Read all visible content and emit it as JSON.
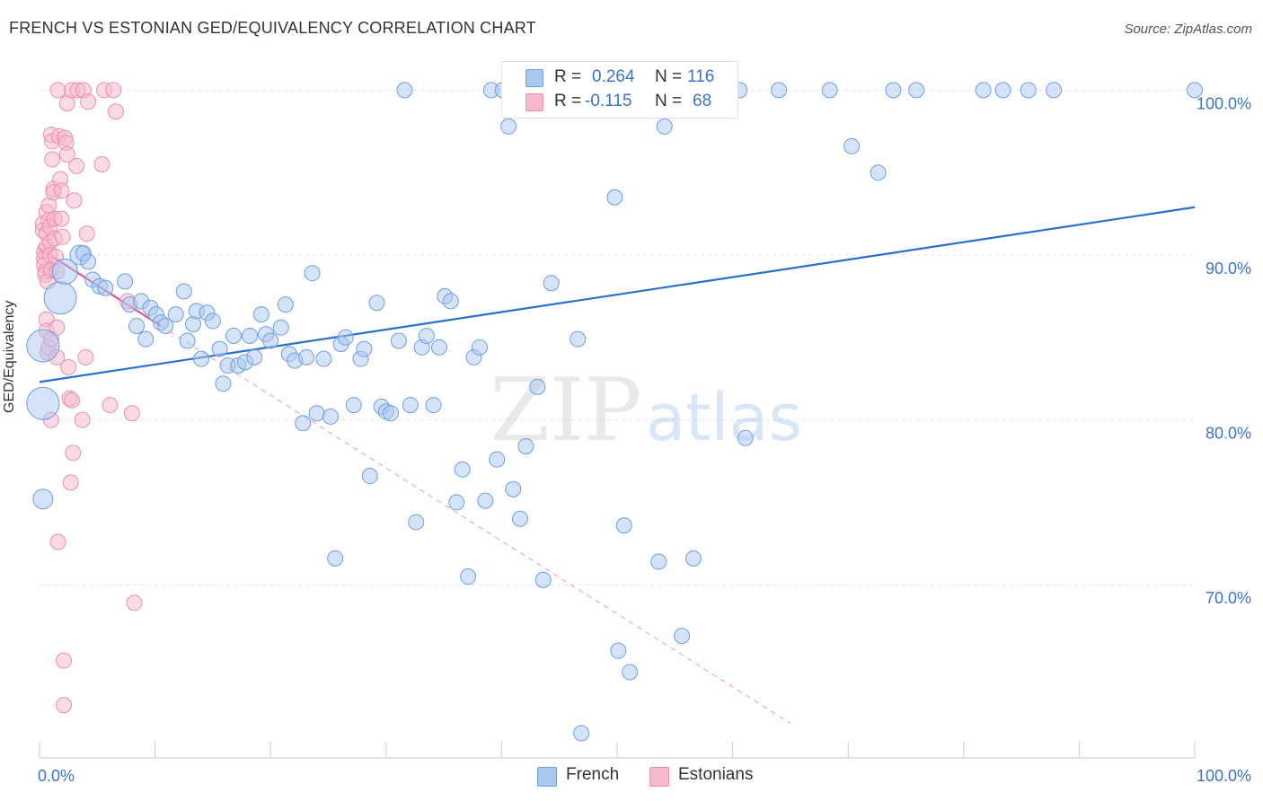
{
  "title": "FRENCH VS ESTONIAN GED/EQUIVALENCY CORRELATION CHART",
  "source": "Source: ZipAtlas.com",
  "watermark": {
    "zip": "ZIP",
    "atlas": "atlas"
  },
  "colors": {
    "french_fill": "#a9c8f0",
    "french_stroke": "#6f9fdd",
    "french_line": "#2a6fcf",
    "estonian_fill": "#f6b8cc",
    "estonian_stroke": "#ec8fae",
    "estonian_line": "#e0558a",
    "blue_text": "#3a74c8",
    "grid": "#e4e4e4"
  },
  "legend": {
    "r_label": "R =",
    "n_label": "N =",
    "french": {
      "r": "0.264",
      "n": "116"
    },
    "estonian": {
      "r": "-0.115",
      "n": "68"
    }
  },
  "chart_data": {
    "type": "scatter",
    "title": "FRENCH VS ESTONIAN GED/EQUIVALENCY CORRELATION CHART",
    "xlabel": "",
    "ylabel": "GED/Equivalency",
    "xlim": [
      0,
      100
    ],
    "ylim": [
      59.5,
      102.2
    ],
    "x_tick_labels": [
      "0.0%",
      "100.0%"
    ],
    "y_ticks": [
      70,
      80,
      90,
      100
    ],
    "y_tick_labels": [
      "70.0%",
      "80.0%",
      "90.0%",
      "100.0%"
    ],
    "grid": true,
    "legend_position": "bottom",
    "series": [
      {
        "name": "French",
        "r": 0.264,
        "n": 116,
        "trend": {
          "x": [
            0,
            100
          ],
          "y": [
            82.3,
            92.9
          ],
          "style": "solid"
        },
        "points": [
          [
            0.3,
            84.5,
            3
          ],
          [
            0.3,
            81,
            3
          ],
          [
            0.3,
            75.2,
            2
          ],
          [
            1.8,
            87.4,
            3
          ],
          [
            2.2,
            89,
            2.5
          ],
          [
            3.5,
            90,
            2
          ],
          [
            3.8,
            90.1,
            1
          ],
          [
            4.2,
            89.6,
            1
          ],
          [
            4.6,
            88.5,
            1
          ],
          [
            5.2,
            88.1,
            1
          ],
          [
            5.7,
            88,
            1
          ],
          [
            7.4,
            88.4,
            1
          ],
          [
            7.8,
            87,
            1
          ],
          [
            8.4,
            85.7,
            1
          ],
          [
            8.8,
            87.2,
            1
          ],
          [
            9.2,
            84.9,
            1
          ],
          [
            9.6,
            86.8,
            1
          ],
          [
            10.1,
            86.4,
            1
          ],
          [
            10.5,
            85.9,
            1
          ],
          [
            10.9,
            85.7,
            1
          ],
          [
            11.8,
            86.4,
            1
          ],
          [
            12.5,
            87.8,
            1
          ],
          [
            12.8,
            84.8,
            1
          ],
          [
            13.3,
            85.8,
            1
          ],
          [
            13.6,
            86.6,
            1
          ],
          [
            14.0,
            83.7,
            1
          ],
          [
            14.5,
            86.5,
            1
          ],
          [
            15.0,
            86,
            1
          ],
          [
            15.6,
            84.3,
            1
          ],
          [
            15.9,
            82.2,
            1
          ],
          [
            16.3,
            83.3,
            1
          ],
          [
            16.8,
            85.1,
            1
          ],
          [
            17.2,
            83.3,
            1
          ],
          [
            17.8,
            83.5,
            1
          ],
          [
            18.2,
            85.1,
            1
          ],
          [
            18.6,
            83.8,
            1
          ],
          [
            19.2,
            86.4,
            1
          ],
          [
            19.6,
            85.2,
            1
          ],
          [
            20.0,
            84.8,
            1
          ],
          [
            20.9,
            85.6,
            1
          ],
          [
            21.3,
            87,
            1
          ],
          [
            21.6,
            84,
            1
          ],
          [
            22.1,
            83.6,
            1
          ],
          [
            22.8,
            79.8,
            1
          ],
          [
            23.1,
            83.8,
            1
          ],
          [
            23.6,
            88.9,
            1
          ],
          [
            24.0,
            80.4,
            1
          ],
          [
            24.6,
            83.7,
            1
          ],
          [
            25.2,
            80.2,
            1
          ],
          [
            25.6,
            71.6,
            1
          ],
          [
            26.1,
            84.6,
            1
          ],
          [
            26.5,
            85,
            1
          ],
          [
            27.2,
            80.9,
            1
          ],
          [
            27.8,
            83.7,
            1
          ],
          [
            28.1,
            84.3,
            1
          ],
          [
            28.6,
            76.6,
            1
          ],
          [
            29.2,
            87.1,
            1
          ],
          [
            29.6,
            80.8,
            1
          ],
          [
            30.0,
            80.5,
            1
          ],
          [
            30.4,
            80.4,
            1
          ],
          [
            31.1,
            84.8,
            1
          ],
          [
            31.6,
            100,
            1
          ],
          [
            32.1,
            80.9,
            1
          ],
          [
            32.6,
            73.8,
            1
          ],
          [
            33.1,
            84.4,
            1
          ],
          [
            33.5,
            85.1,
            1
          ],
          [
            34.1,
            80.9,
            1
          ],
          [
            34.6,
            84.4,
            1
          ],
          [
            35.1,
            87.5,
            1
          ],
          [
            35.6,
            87.2,
            1
          ],
          [
            36.1,
            75,
            1
          ],
          [
            36.6,
            77,
            1
          ],
          [
            37.1,
            70.5,
            1
          ],
          [
            37.6,
            83.8,
            1
          ],
          [
            38.1,
            84.4,
            1
          ],
          [
            38.6,
            75.1,
            1
          ],
          [
            39.1,
            100,
            1
          ],
          [
            39.6,
            77.6,
            1
          ],
          [
            40.1,
            100,
            1
          ],
          [
            40.6,
            97.8,
            1
          ],
          [
            41.0,
            75.8,
            1
          ],
          [
            41.6,
            74,
            1
          ],
          [
            42.1,
            78.4,
            1
          ],
          [
            43.1,
            82,
            1
          ],
          [
            43.6,
            70.3,
            1
          ],
          [
            44.3,
            88.3,
            1
          ],
          [
            46.6,
            84.9,
            1
          ],
          [
            46.9,
            61,
            1
          ],
          [
            47.2,
            100,
            1
          ],
          [
            49.8,
            93.5,
            1
          ],
          [
            50.1,
            66,
            1
          ],
          [
            50.6,
            73.6,
            1
          ],
          [
            51.1,
            64.7,
            1
          ],
          [
            52.6,
            100,
            1
          ],
          [
            53.6,
            71.4,
            1
          ],
          [
            54.1,
            97.8,
            1
          ],
          [
            55.6,
            66.9,
            1
          ],
          [
            56.6,
            71.6,
            1
          ],
          [
            60.6,
            100,
            1
          ],
          [
            61.1,
            78.9,
            1
          ],
          [
            64.0,
            100,
            1
          ],
          [
            68.4,
            100,
            1
          ],
          [
            70.3,
            96.6,
            1
          ],
          [
            72.6,
            95,
            1
          ],
          [
            73.9,
            100,
            1
          ],
          [
            75.9,
            100,
            1
          ],
          [
            81.7,
            100,
            1
          ],
          [
            83.4,
            100,
            1
          ],
          [
            85.6,
            100,
            1
          ],
          [
            87.8,
            100,
            1
          ],
          [
            100,
            100,
            1
          ]
        ]
      },
      {
        "name": "Estonians",
        "r": -0.115,
        "n": 68,
        "trend": {
          "x": [
            0,
            10.5
          ],
          "y": [
            90.4,
            85.7
          ],
          "style": "solid",
          "extended": {
            "x": [
              10.5,
              65
            ],
            "y": [
              85.7,
              61.6
            ],
            "style": "dashed"
          }
        },
        "points": [
          [
            0.3,
            91.9
          ],
          [
            0.3,
            91.5
          ],
          [
            0.4,
            90.2
          ],
          [
            0.4,
            89.8
          ],
          [
            0.4,
            89.4
          ],
          [
            0.5,
            89.0
          ],
          [
            0.5,
            88.8
          ],
          [
            0.6,
            92.6
          ],
          [
            0.6,
            91.3
          ],
          [
            0.6,
            90.5
          ],
          [
            0.7,
            88.4
          ],
          [
            0.6,
            86.1
          ],
          [
            0.6,
            85.4
          ],
          [
            0.7,
            84.1
          ],
          [
            0.8,
            84.4
          ],
          [
            0.8,
            93
          ],
          [
            0.8,
            92.1
          ],
          [
            0.9,
            91.7
          ],
          [
            0.9,
            90.8
          ],
          [
            0.9,
            90
          ],
          [
            1.0,
            89.1
          ],
          [
            1.0,
            84.9
          ],
          [
            1.0,
            80.0
          ],
          [
            1.0,
            97.3
          ],
          [
            1.1,
            96.9
          ],
          [
            1.1,
            95.8
          ],
          [
            1.2,
            94.0
          ],
          [
            1.2,
            93.8
          ],
          [
            1.3,
            92.2
          ],
          [
            1.3,
            91.0
          ],
          [
            1.4,
            89.9
          ],
          [
            1.5,
            89.0
          ],
          [
            1.5,
            85.6
          ],
          [
            1.5,
            83.8
          ],
          [
            1.6,
            100
          ],
          [
            1.6,
            72.6
          ],
          [
            1.7,
            97.2
          ],
          [
            1.8,
            94.6
          ],
          [
            1.9,
            93.9
          ],
          [
            1.9,
            92.2
          ],
          [
            2.0,
            91.1
          ],
          [
            2.1,
            62.7
          ],
          [
            2.1,
            65.4
          ],
          [
            2.2,
            97.1
          ],
          [
            2.3,
            96.8
          ],
          [
            2.4,
            96.1
          ],
          [
            2.4,
            99.2
          ],
          [
            2.5,
            83.2
          ],
          [
            2.6,
            81.3
          ],
          [
            2.7,
            76.2
          ],
          [
            2.8,
            100
          ],
          [
            2.8,
            81.2
          ],
          [
            2.9,
            78
          ],
          [
            3.0,
            93.3
          ],
          [
            3.2,
            95.4
          ],
          [
            3.3,
            100
          ],
          [
            3.7,
            80.0
          ],
          [
            3.8,
            100
          ],
          [
            4.0,
            83.8
          ],
          [
            4.1,
            91.3
          ],
          [
            4.2,
            99.3
          ],
          [
            5.4,
            95.5
          ],
          [
            5.6,
            100
          ],
          [
            6.1,
            80.9
          ],
          [
            6.4,
            100
          ],
          [
            6.6,
            98.7
          ],
          [
            7.6,
            87.2
          ],
          [
            8.0,
            80.4
          ],
          [
            8.2,
            68.9
          ]
        ]
      }
    ]
  },
  "bottom_legend": {
    "french": "French",
    "estonians": "Estonians"
  }
}
